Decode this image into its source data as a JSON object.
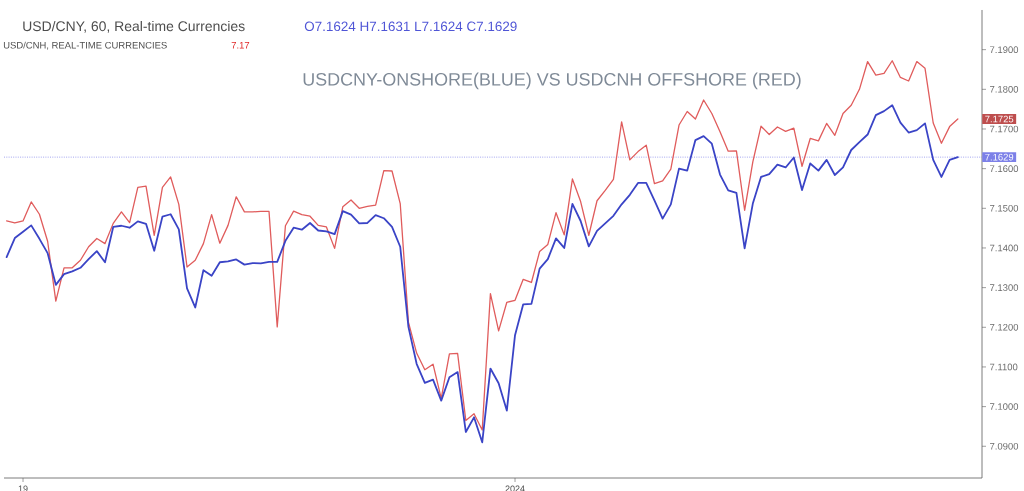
{
  "chart_data": {
    "type": "line",
    "title": "USDCNY-ONSHORE(BLUE) VS USDCNH OFFSHORE (RED)",
    "annotations": [
      "USD/CNY, 60, Real-time Currencies",
      "O7.1624 H7.1631 L7.1624 C7.1629",
      "USD/CNH, REAL-TIME CURRENCIES",
      "7.17",
      "7.1725"
    ],
    "categories": [
      null,
      null,
      "19",
      null,
      null,
      null,
      null,
      null,
      null,
      null,
      null,
      null,
      null,
      null,
      null,
      null,
      null,
      null,
      null,
      null,
      null,
      null,
      null,
      null,
      null,
      null,
      null,
      null,
      null,
      null,
      null,
      null,
      null,
      null,
      null,
      null,
      null,
      null,
      null,
      null,
      null,
      null,
      null,
      null,
      null,
      null,
      null,
      null,
      null,
      null,
      null,
      null,
      null,
      null,
      null,
      null,
      null,
      null,
      null,
      null,
      null,
      null,
      "2024",
      null,
      null,
      null,
      null,
      null,
      null,
      null,
      null,
      null,
      null,
      null,
      null,
      null,
      null,
      null,
      null,
      null,
      null,
      null,
      null,
      null,
      null,
      null,
      null,
      null,
      null,
      null,
      null,
      null,
      null,
      null,
      null,
      null,
      null,
      null,
      null,
      null,
      null,
      null,
      null,
      null,
      null,
      null,
      null,
      null,
      null,
      null,
      null,
      null,
      null,
      null,
      null,
      null,
      null
    ],
    "series": [
      {
        "color": "#e05c5c",
        "values": [
          7.1468,
          7.1463,
          7.1468,
          7.1516,
          7.1485,
          7.1417,
          7.1266,
          7.135,
          7.135,
          7.1369,
          7.1403,
          7.1424,
          7.1411,
          7.1462,
          7.1491,
          7.1464,
          7.1553,
          7.1556,
          7.1432,
          7.1553,
          7.1579,
          7.151,
          7.1352,
          7.1369,
          7.1411,
          7.1484,
          7.1412,
          7.1457,
          7.1529,
          7.1491,
          7.1491,
          7.1492,
          7.1492,
          7.1201,
          7.1456,
          7.1493,
          7.1484,
          7.148,
          7.1457,
          7.1453,
          7.1399,
          7.1504,
          7.1521,
          7.15,
          7.1505,
          7.1508,
          7.1595,
          7.1594,
          7.1512,
          7.1213,
          7.1135,
          7.1093,
          7.1107,
          7.1021,
          7.1133,
          7.1134,
          7.0965,
          7.0982,
          7.0941,
          7.1285,
          7.1191,
          7.1263,
          7.1268,
          7.1321,
          7.1313,
          7.1391,
          7.1409,
          7.1489,
          7.1433,
          7.1574,
          7.1517,
          7.1432,
          7.1519,
          7.1545,
          7.1573,
          7.1718,
          7.1622,
          7.1643,
          7.1659,
          7.1562,
          7.1569,
          7.1599,
          7.171,
          7.1744,
          7.1725,
          7.1773,
          7.1739,
          7.1693,
          7.1644,
          7.1645,
          7.1495,
          7.1617,
          7.1707,
          7.1686,
          7.1705,
          7.1694,
          7.1702,
          7.1606,
          7.1676,
          7.167,
          7.1714,
          7.1684,
          7.1739,
          7.176,
          7.18,
          7.187,
          7.1836,
          7.184,
          7.1872,
          7.183,
          7.1821,
          7.187,
          7.1853,
          7.1715,
          7.1664,
          7.1706,
          7.1725
        ]
      },
      {
        "color": "#3a44c6",
        "values": [
          7.1377,
          7.1425,
          7.1441,
          7.1457,
          7.1423,
          7.1387,
          7.1307,
          7.1334,
          7.1341,
          7.135,
          7.1372,
          7.1392,
          7.1364,
          7.1453,
          7.1456,
          7.1451,
          7.1467,
          7.1461,
          7.1393,
          7.1479,
          7.1485,
          7.1447,
          7.1298,
          7.125,
          7.1344,
          7.133,
          7.1364,
          7.1366,
          7.1371,
          7.1358,
          7.1362,
          7.1361,
          7.1365,
          7.1365,
          7.1418,
          7.1451,
          7.1446,
          7.1463,
          7.1444,
          7.1442,
          7.1435,
          7.1493,
          7.1484,
          7.1462,
          7.1463,
          7.1483,
          7.1475,
          7.1453,
          7.1403,
          7.1201,
          7.1108,
          7.106,
          7.1068,
          7.1015,
          7.1074,
          7.1087,
          7.0936,
          7.0973,
          7.091,
          7.1096,
          7.1059,
          7.099,
          7.118,
          7.1258,
          7.1259,
          7.1348,
          7.1372,
          7.1424,
          7.14,
          7.1511,
          7.1468,
          7.1404,
          7.1443,
          7.1462,
          7.1481,
          7.151,
          7.1534,
          7.1564,
          7.1564,
          7.152,
          7.1474,
          7.151,
          7.16,
          7.1595,
          7.1672,
          7.1682,
          7.1663,
          7.1585,
          7.1545,
          7.1539,
          7.1399,
          7.1512,
          7.1579,
          7.1586,
          7.161,
          7.1603,
          7.1628,
          7.1546,
          7.1613,
          7.1595,
          7.1622,
          7.1584,
          7.1603,
          7.1647,
          7.1667,
          7.1686,
          7.1735,
          7.1745,
          7.176,
          7.1716,
          7.1691,
          7.1697,
          7.1714,
          7.1622,
          7.1579,
          7.1622,
          7.1629
        ]
      }
    ],
    "ylim": [
      7.082,
      7.2
    ],
    "yticks": [
      {
        "value": 7.09,
        "label": "7.0900"
      },
      {
        "value": 7.1,
        "label": "7.1000"
      },
      {
        "value": 7.11,
        "label": "7.1100"
      },
      {
        "value": 7.12,
        "label": "7.1200"
      },
      {
        "value": 7.13,
        "label": "7.1300"
      },
      {
        "value": 7.14,
        "label": "7.1400"
      },
      {
        "value": 7.15,
        "label": "7.1500"
      },
      {
        "value": 7.16,
        "label": "7.1600"
      },
      {
        "value": 7.17,
        "label": "7.1700"
      },
      {
        "value": 7.18,
        "label": "7.1800"
      },
      {
        "value": 7.19,
        "label": "7.1900"
      }
    ],
    "ref_lines": [
      {
        "axis": "y",
        "value": 7.1629,
        "label": "7.1629",
        "color": "#7c80e8",
        "line_style": "dotted"
      }
    ],
    "marker": "none"
  }
}
